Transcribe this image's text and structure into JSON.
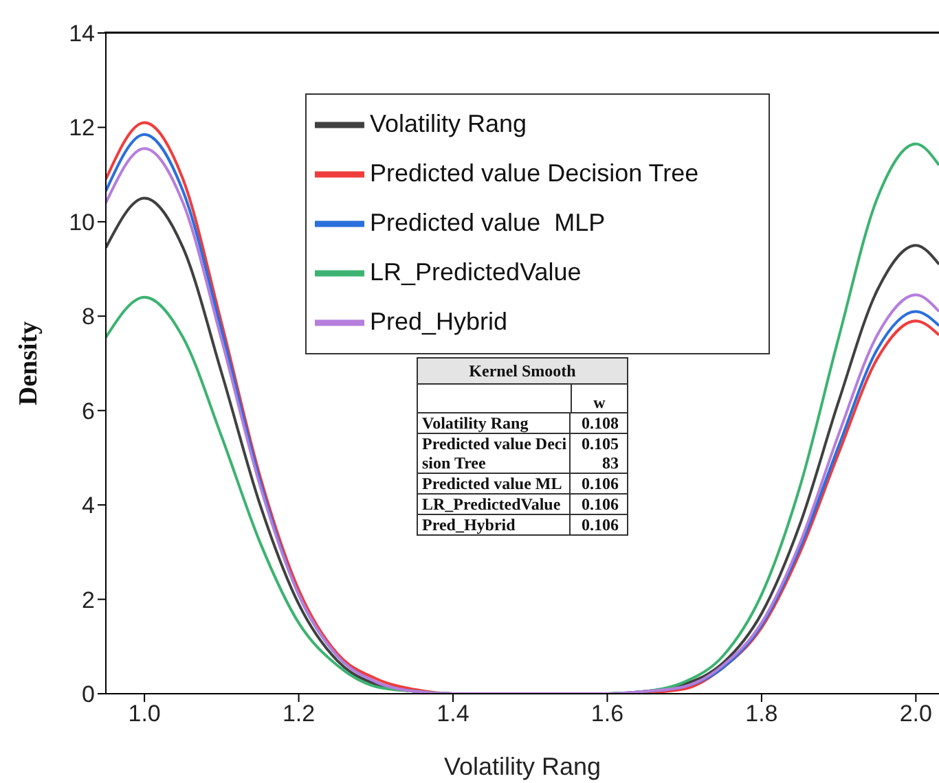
{
  "chart_data": {
    "type": "line",
    "xlabel": "Volatility Rang",
    "ylabel": "Density",
    "x": [
      0.95,
      1.0,
      1.05,
      1.1,
      1.15,
      1.2,
      1.25,
      1.3,
      1.35,
      1.4,
      1.5,
      1.6,
      1.65,
      1.7,
      1.75,
      1.8,
      1.85,
      1.9,
      1.95,
      2.0,
      2.03
    ],
    "series": [
      {
        "name": "Volatility Rang",
        "color": "#404040",
        "values": [
          9.45,
          10.5,
          9.45,
          6.8,
          4.0,
          1.9,
          0.7,
          0.2,
          0.05,
          0,
          0,
          0,
          0.05,
          0.2,
          0.65,
          1.7,
          3.6,
          6.2,
          8.55,
          9.5,
          9.1
        ]
      },
      {
        "name": "Predicted value Decision Tree",
        "color": "#f03c3c",
        "values": [
          10.9,
          12.1,
          10.9,
          7.85,
          4.6,
          2.2,
          0.85,
          0.32,
          0.09,
          0,
          0,
          0,
          0.02,
          0.1,
          0.55,
          1.4,
          3.0,
          5.1,
          7.1,
          7.9,
          7.6
        ]
      },
      {
        "name": "Predicted value  MLP",
        "color": "#2a6fdb",
        "values": [
          10.65,
          11.85,
          10.65,
          7.7,
          4.5,
          2.1,
          0.8,
          0.25,
          0.05,
          0,
          0,
          0,
          0.05,
          0.15,
          0.55,
          1.45,
          3.1,
          5.25,
          7.3,
          8.1,
          7.8
        ]
      },
      {
        "name": "LR_PredictedValue",
        "color": "#3cb371",
        "values": [
          7.55,
          8.4,
          7.55,
          5.45,
          3.2,
          1.5,
          0.6,
          0.15,
          0.05,
          0,
          0,
          0,
          0.05,
          0.25,
          0.8,
          2.1,
          4.4,
          7.55,
          10.5,
          11.65,
          11.2
        ]
      },
      {
        "name": "Pred_Hybrid",
        "color": "#b57edc",
        "values": [
          10.4,
          11.55,
          10.4,
          7.5,
          4.4,
          2.1,
          0.8,
          0.25,
          0.05,
          0,
          0,
          0,
          0.05,
          0.15,
          0.6,
          1.5,
          3.2,
          5.5,
          7.6,
          8.45,
          8.1
        ]
      }
    ],
    "xlim": [
      0.95,
      2.03
    ],
    "xticks": [
      {
        "value": 1.0,
        "label": "1.0"
      },
      {
        "value": 1.2,
        "label": "1.2"
      },
      {
        "value": 1.4,
        "label": "1.4"
      },
      {
        "value": 1.6,
        "label": "1.6"
      },
      {
        "value": 1.8,
        "label": "1.8"
      },
      {
        "value": 2.0,
        "label": "2.0"
      }
    ],
    "ylim": [
      0,
      14
    ],
    "yticks": [
      0,
      2,
      4,
      6,
      8,
      10,
      12,
      14
    ],
    "grid": false,
    "legend": "top",
    "marker": "none",
    "line_style": "solid",
    "annotations": [
      "Kernel Smooth",
      "w",
      "Volatility Rang",
      "0.108",
      "Predicted value Decision Tree",
      "0.10583",
      "Predicted value ML",
      "0.106",
      "LR_PredictedValue",
      "0.106",
      "Pred_Hybrid",
      "0.106"
    ]
  }
}
